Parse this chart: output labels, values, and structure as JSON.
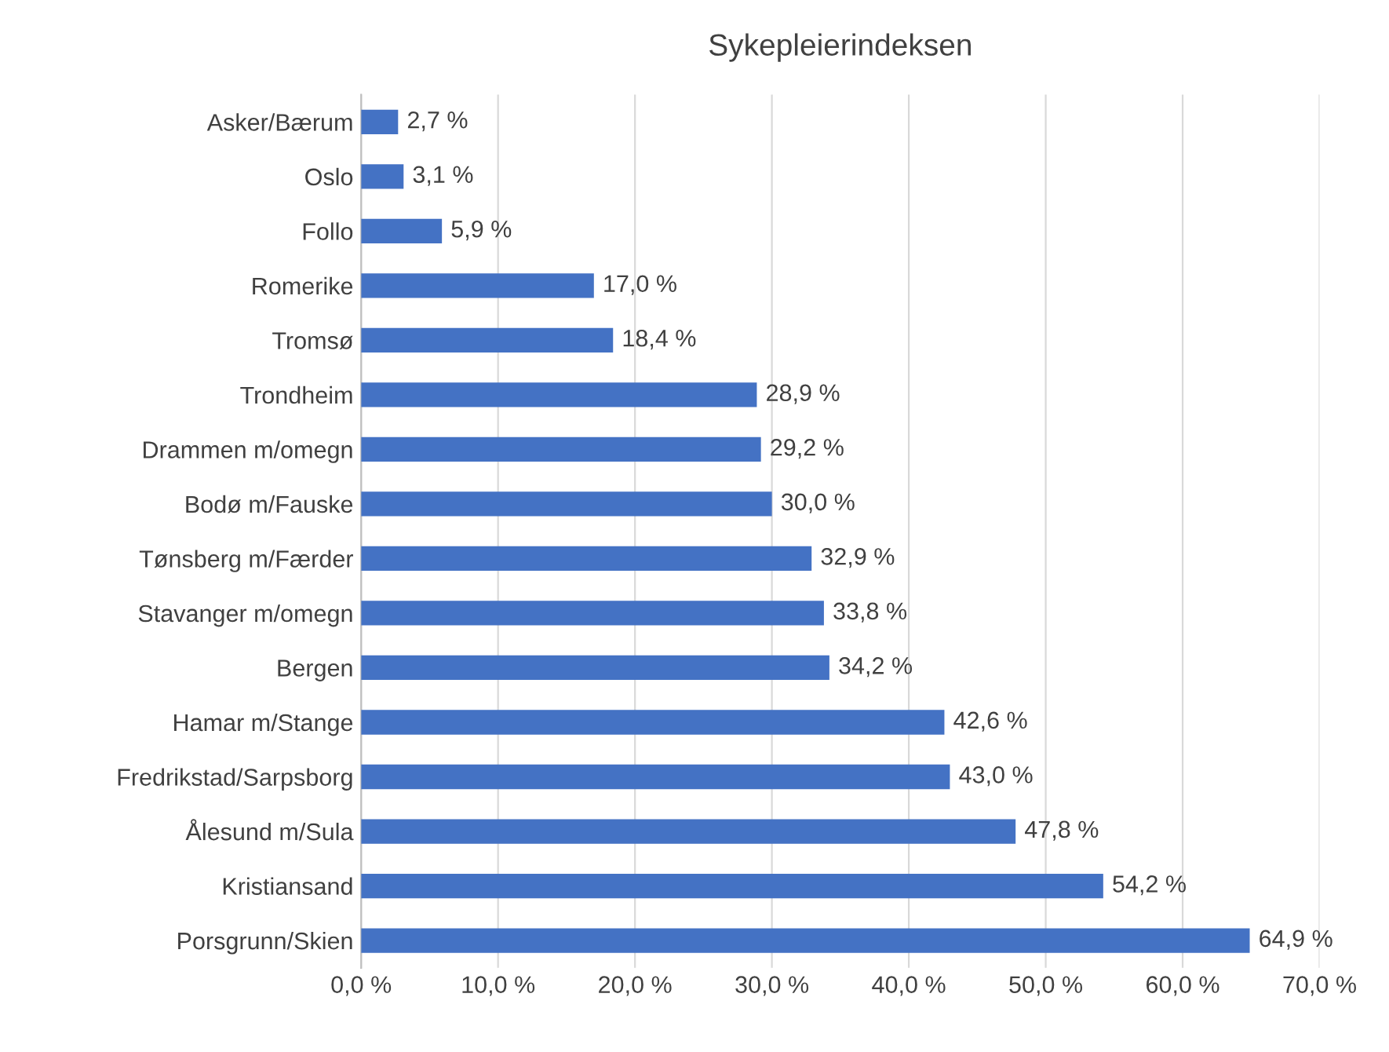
{
  "chart_data": {
    "type": "bar",
    "orientation": "horizontal",
    "title": "Sykepleierindeksen",
    "categories": [
      "Asker/Bærum",
      "Oslo",
      "Follo",
      "Romerike",
      "Tromsø",
      "Trondheim",
      "Drammen m/omegn",
      "Bodø m/Fauske",
      "Tønsberg m/Færder",
      "Stavanger m/omegn",
      "Bergen",
      "Hamar m/Stange",
      "Fredrikstad/Sarpsborg",
      "Ålesund m/Sula",
      "Kristiansand",
      "Porsgrunn/Skien"
    ],
    "values": [
      2.7,
      3.1,
      5.9,
      17.0,
      18.4,
      28.9,
      29.2,
      30.0,
      32.9,
      33.8,
      34.2,
      42.6,
      43.0,
      47.8,
      54.2,
      64.9
    ],
    "value_labels": [
      "2,7 %",
      "3,1 %",
      "5,9 %",
      "17,0 %",
      "18,4 %",
      "28,9 %",
      "29,2 %",
      "30,0 %",
      "32,9 %",
      "33,8 %",
      "34,2 %",
      "42,6 %",
      "43,0 %",
      "47,8 %",
      "54,2 %",
      "64,9 %"
    ],
    "color": "#4472c4",
    "xlim": [
      0,
      70
    ],
    "xticks": [
      {
        "value": 0,
        "label": "0,0 %"
      },
      {
        "value": 10,
        "label": "10,0 %"
      },
      {
        "value": 20,
        "label": "20,0 %"
      },
      {
        "value": 30,
        "label": "30,0 %"
      },
      {
        "value": 40,
        "label": "40,0 %"
      },
      {
        "value": 50,
        "label": "50,0 %"
      },
      {
        "value": 60,
        "label": "60,0 %"
      },
      {
        "value": 70,
        "label": "70,0 %"
      }
    ],
    "grid": "x"
  }
}
